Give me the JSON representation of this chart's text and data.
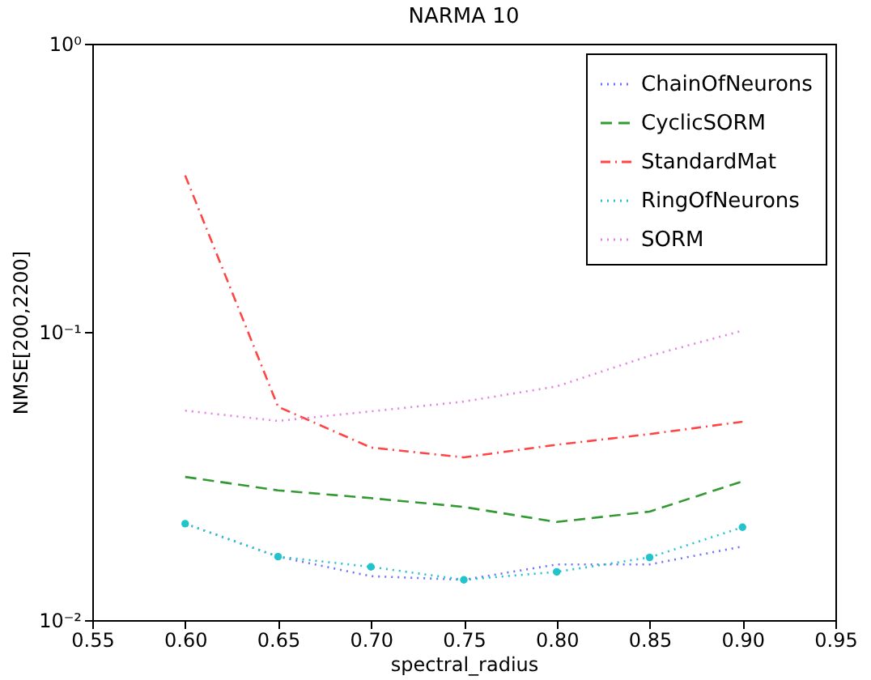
{
  "chart_data": {
    "type": "line",
    "title": "NARMA 10",
    "xlabel": "spectral_radius",
    "ylabel": "NMSE[200,2200]",
    "x": [
      0.6,
      0.65,
      0.7,
      0.75,
      0.8,
      0.85,
      0.9
    ],
    "series": [
      {
        "name": "ChainOfNeurons",
        "color": "#7070ff",
        "line_style": "dotted",
        "values": [
          0.0216,
          0.0166,
          0.0142,
          0.0138,
          0.0156,
          0.0156,
          0.018
        ]
      },
      {
        "name": "CyclicSORM",
        "color": "#339933",
        "line_style": "dashed",
        "values": [
          0.0314,
          0.0282,
          0.0265,
          0.0247,
          0.0219,
          0.0238,
          0.0303
        ]
      },
      {
        "name": "StandardMat",
        "color": "#ff4444",
        "line_style": "dashdot",
        "values": [
          0.349,
          0.055,
          0.0397,
          0.0367,
          0.0406,
          0.0442,
          0.0488
        ]
      },
      {
        "name": "RingOfNeurons",
        "color": "#22c4cc",
        "line_style": "dotted",
        "marker": "circle",
        "values": [
          0.0216,
          0.0166,
          0.0153,
          0.0138,
          0.0147,
          0.0165,
          0.021
        ]
      },
      {
        "name": "SORM",
        "color": "#e87ee8",
        "line_style": "dotted",
        "values": [
          0.0533,
          0.0491,
          0.053,
          0.0573,
          0.0647,
          0.0826,
          0.101
        ]
      }
    ],
    "log": "y",
    "xlim": [
      0.55,
      0.95
    ],
    "ylim": [
      0.01,
      1
    ],
    "xticks": [
      0.55,
      {
        "value": 0.6,
        "label": "0.60"
      },
      0.65,
      {
        "value": 0.7,
        "label": "0.70"
      },
      0.75,
      {
        "value": 0.8,
        "label": "0.80"
      },
      0.85,
      {
        "value": 0.9,
        "label": "0.90"
      },
      0.95
    ],
    "yticks": [
      {
        "value": 0.01,
        "label": "10⁻²"
      },
      {
        "value": 0.1,
        "label": "10⁻¹"
      },
      {
        "value": 1,
        "label": "10⁰"
      }
    ],
    "grid": false,
    "legend": "top right"
  }
}
